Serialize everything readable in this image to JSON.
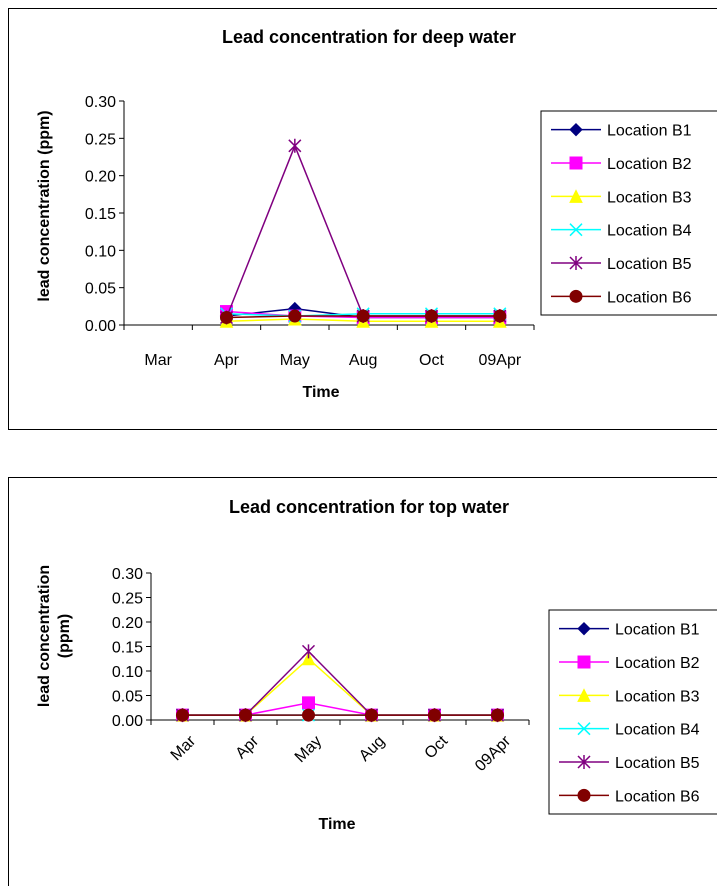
{
  "chart_data": [
    {
      "type": "line",
      "title": "Lead concentration for deep water",
      "xlabel": "Time",
      "ylabel": "lead concentration (ppm)",
      "categories": [
        "Mar",
        "Apr",
        "May",
        "Aug",
        "Oct",
        "09Apr"
      ],
      "ylim": [
        0,
        0.3
      ],
      "yticks": [
        "0.00",
        "0.05",
        "0.10",
        "0.15",
        "0.20",
        "0.25",
        "0.30"
      ],
      "x_tick_rotation": 0,
      "legend_position": "right",
      "series": [
        {
          "name": "Location B1",
          "color": "#000080",
          "marker": "diamond",
          "values": [
            null,
            0.012,
            0.022,
            0.01,
            0.01,
            0.01
          ]
        },
        {
          "name": "Location B2",
          "color": "#FF00FF",
          "marker": "square",
          "values": [
            null,
            0.018,
            0.012,
            0.01,
            0.01,
            0.01
          ]
        },
        {
          "name": "Location B3",
          "color": "#FFFF00",
          "marker": "triangle",
          "values": [
            null,
            0.005,
            0.008,
            0.005,
            0.005,
            0.005
          ]
        },
        {
          "name": "Location B4",
          "color": "#00FFFF",
          "marker": "x",
          "values": [
            null,
            0.015,
            0.012,
            0.015,
            0.015,
            0.015
          ]
        },
        {
          "name": "Location B5",
          "color": "#800080",
          "marker": "star",
          "values": [
            null,
            0.01,
            0.24,
            0.012,
            0.012,
            0.012
          ]
        },
        {
          "name": "Location B6",
          "color": "#800000",
          "marker": "circle",
          "values": [
            null,
            0.01,
            0.012,
            0.012,
            0.012,
            0.012
          ]
        }
      ]
    },
    {
      "type": "line",
      "title": "Lead concentration for top water",
      "xlabel": "Time",
      "ylabel": "lead concentration (ppm)",
      "categories": [
        "Mar",
        "Apr",
        "May",
        "Aug",
        "Oct",
        "09Apr"
      ],
      "ylim": [
        0,
        0.3
      ],
      "yticks": [
        "0.00",
        "0.05",
        "0.10",
        "0.15",
        "0.20",
        "0.25",
        "0.30"
      ],
      "x_tick_rotation": -45,
      "legend_position": "right",
      "series": [
        {
          "name": "Location B1",
          "color": "#000080",
          "marker": "diamond",
          "values": [
            0.01,
            0.01,
            0.01,
            0.01,
            0.01,
            0.01
          ]
        },
        {
          "name": "Location B2",
          "color": "#FF00FF",
          "marker": "square",
          "values": [
            0.01,
            0.01,
            0.035,
            0.01,
            0.01,
            0.01
          ]
        },
        {
          "name": "Location B3",
          "color": "#FFFF00",
          "marker": "triangle",
          "values": [
            0.01,
            0.01,
            0.125,
            0.01,
            0.01,
            0.01
          ]
        },
        {
          "name": "Location B4",
          "color": "#00FFFF",
          "marker": "x",
          "values": [
            0.01,
            0.01,
            0.01,
            0.01,
            0.01,
            0.01
          ]
        },
        {
          "name": "Location B5",
          "color": "#800080",
          "marker": "star",
          "values": [
            0.01,
            0.01,
            0.14,
            0.01,
            0.01,
            0.01
          ]
        },
        {
          "name": "Location B6",
          "color": "#800000",
          "marker": "circle",
          "values": [
            0.01,
            0.01,
            0.01,
            0.01,
            0.01,
            0.01
          ]
        }
      ]
    }
  ]
}
